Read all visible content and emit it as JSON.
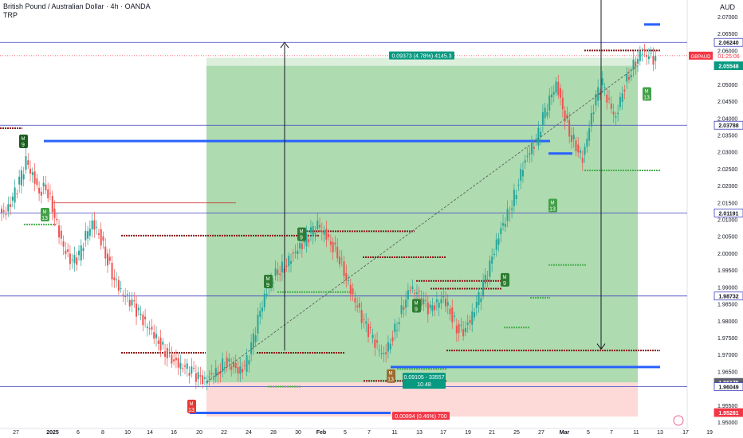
{
  "chart_data": {
    "type": "candlestick",
    "title": "British Pound / Australian Dollar · 4h · OANDA",
    "indicator": "TRP",
    "currency": "AUD",
    "symbol_badge": "GBPAUD",
    "countdown": "01:25:06",
    "ylim": [
      1.95,
      2.07
    ],
    "y_ticks": [
      "2.07000",
      "2.06500",
      "2.06000",
      "2.05500",
      "2.05000",
      "2.04500",
      "2.04000",
      "2.03500",
      "2.03000",
      "2.02500",
      "2.02000",
      "2.01500",
      "2.01000",
      "2.00500",
      "2.00000",
      "1.99500",
      "1.99000",
      "1.98500",
      "1.98000",
      "1.97500",
      "1.97000",
      "1.96500",
      "1.96000",
      "1.95500",
      "1.95000"
    ],
    "x_ticks": [
      "27",
      "2025",
      "6",
      "8",
      "10",
      "14",
      "16",
      "20",
      "22",
      "24",
      "28",
      "30",
      "Feb",
      "5",
      "7",
      "11",
      "13",
      "17",
      "19",
      "21",
      "25",
      "27",
      "Mar",
      "5",
      "7",
      "11",
      "13",
      "17",
      "19"
    ],
    "price_tags": [
      {
        "label": "2.06240",
        "style": "blue"
      },
      {
        "label": "2.05548",
        "style": "green"
      },
      {
        "label": "2.03788",
        "style": "blue"
      },
      {
        "label": "2.01191",
        "style": "blue"
      },
      {
        "label": "1.98732",
        "style": "blue"
      },
      {
        "label": "1.96175",
        "style": "gray"
      },
      {
        "label": "1.96049",
        "style": "blue"
      },
      {
        "label": "1.95281",
        "style": "red"
      }
    ],
    "position": {
      "entry": 1.96175,
      "target": 2.05548,
      "stop": 1.95281,
      "target_label": "0.09373 (4.78%) 4145.3",
      "entry_label": "0.09105 - 33557",
      "ratio_label": "10.48",
      "stop_label": "0.00894 (0.46%) 700"
    },
    "close_series": [
      2.012,
      2.016,
      2.021,
      2.027,
      2.023,
      2.018,
      2.02,
      2.014,
      2.006,
      2.0,
      1.997,
      1.999,
      2.005,
      2.009,
      2.006,
      2.0,
      1.994,
      1.99,
      1.987,
      1.985,
      1.982,
      1.979,
      1.977,
      1.974,
      1.971,
      1.969,
      1.967,
      1.966,
      1.965,
      1.963,
      1.962,
      1.964,
      1.965,
      1.968,
      1.967,
      1.965,
      1.966,
      1.972,
      1.98,
      1.987,
      1.992,
      1.995,
      1.996,
      1.999,
      2.001,
      2.003,
      2.006,
      2.008,
      2.006,
      2.003,
      2.0,
      1.995,
      1.989,
      1.984,
      1.979,
      1.976,
      1.972,
      1.97,
      1.974,
      1.979,
      1.985,
      1.99,
      1.988,
      1.985,
      1.983,
      1.985,
      1.987,
      1.983,
      1.978,
      1.977,
      1.98,
      1.985,
      1.99,
      1.996,
      2.003,
      2.009,
      2.013,
      2.019,
      2.026,
      2.03,
      2.033,
      2.04,
      2.045,
      2.05,
      2.043,
      2.036,
      2.032,
      2.028,
      2.037,
      2.046,
      2.05,
      2.044,
      2.04,
      2.048,
      2.053,
      2.057,
      2.06,
      2.058,
      2.057
    ]
  }
}
